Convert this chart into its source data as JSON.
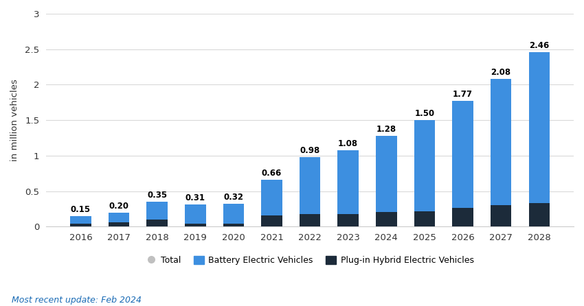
{
  "years": [
    2016,
    2017,
    2018,
    2019,
    2020,
    2021,
    2022,
    2023,
    2024,
    2025,
    2026,
    2027,
    2028
  ],
  "totals": [
    0.15,
    0.2,
    0.35,
    0.31,
    0.32,
    0.66,
    0.98,
    1.08,
    1.28,
    1.5,
    1.77,
    2.08,
    2.46
  ],
  "phev": [
    0.04,
    0.06,
    0.1,
    0.04,
    0.04,
    0.16,
    0.18,
    0.18,
    0.21,
    0.22,
    0.27,
    0.3,
    0.33
  ],
  "bev_color": "#3d8fe0",
  "phev_color": "#1c2b3a",
  "ylim": [
    0,
    3.0
  ],
  "yticks": [
    0,
    0.5,
    1.0,
    1.5,
    2.0,
    2.5,
    3.0
  ],
  "ytick_labels": [
    "0",
    "0.5",
    "1",
    "1.5",
    "2",
    "2.5",
    "3"
  ],
  "ylabel": "in million vehicles",
  "legend_total_label": "Total",
  "legend_bev_label": "Battery Electric Vehicles",
  "legend_phev_label": "Plug-in Hybrid Electric Vehicles",
  "footnote": "Most recent update: Feb 2024",
  "footnote_color": "#1a6bb5",
  "background_color": "#ffffff",
  "grid_color": "#d9d9d9",
  "bar_width": 0.55
}
